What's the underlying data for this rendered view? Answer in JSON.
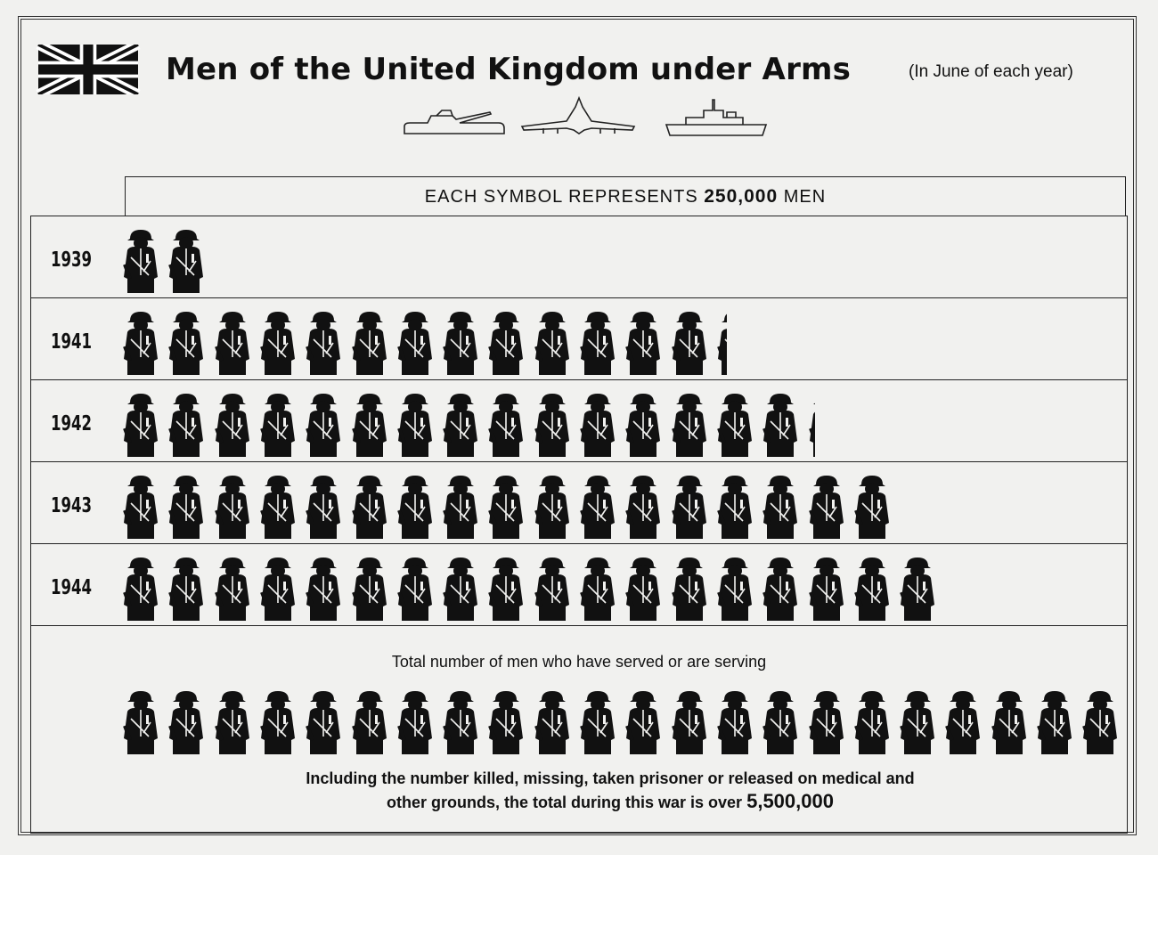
{
  "title": "Men of the United Kingdom under Arms",
  "subtitle": "(In June of each year)",
  "legend": {
    "prefix": "EACH SYMBOL REPRESENTS",
    "value": "250,000",
    "suffix": "MEN"
  },
  "total_section": {
    "label": "Total number of men who have served or are serving",
    "note_line1": "Including the number killed, missing, taken prisoner or released on medical and",
    "note_line2": "other grounds, the total during this war is over",
    "note_value": "5,500,000"
  },
  "icons": [
    "union-flag-icon",
    "tank-icon",
    "aircraft-icon",
    "warship-icon",
    "soldier-icon"
  ],
  "chart_data": {
    "type": "pictogram",
    "unit": "men",
    "symbol_value": 250000,
    "categories": [
      "1939",
      "1941",
      "1942",
      "1943",
      "1944"
    ],
    "symbols": [
      2,
      13.3,
      15.2,
      17,
      18
    ],
    "values": [
      500000,
      3325000,
      3800000,
      4250000,
      4500000
    ],
    "total": {
      "symbols": 22,
      "value": 5500000
    }
  }
}
